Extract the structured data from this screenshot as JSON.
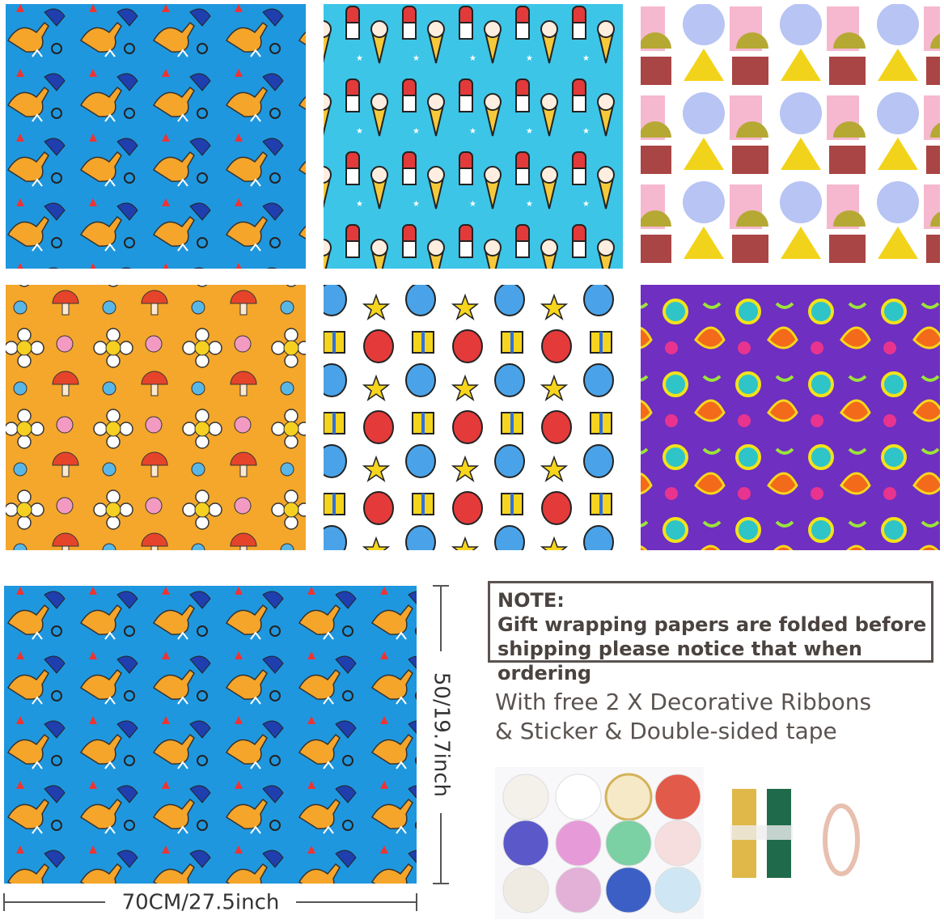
{
  "note": {
    "heading": "NOTE:",
    "lines": [
      "Gift wrapping papers are folded before",
      "shipping please notice that when ordering"
    ]
  },
  "extras": {
    "lines": [
      "With free 2 X Decorative Ribbons",
      "& Sticker & Double-sided tape"
    ]
  },
  "dimensions": {
    "height": "50/19.7inch",
    "width": "70CM/27.5inch"
  }
}
